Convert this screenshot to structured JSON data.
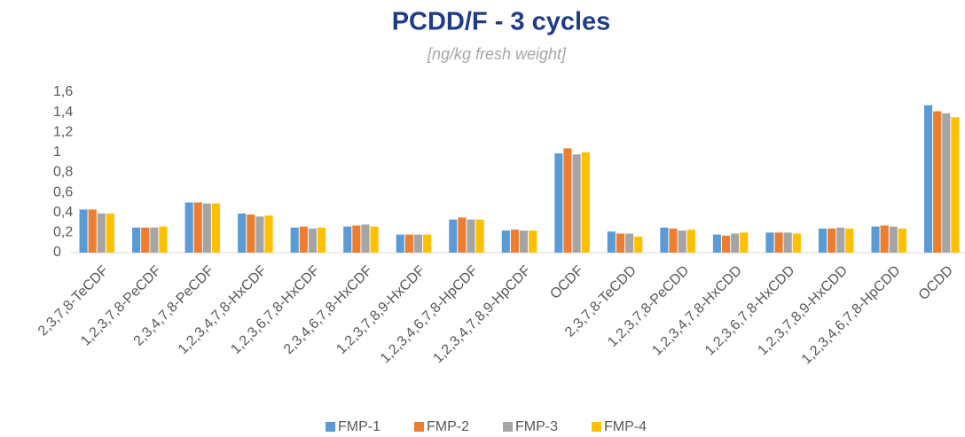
{
  "chart_data": {
    "type": "bar",
    "title": "PCDD/F - 3 cycles",
    "subtitle": "[ng/kg fresh weight]",
    "categories": [
      "2,3,7,8-TeCDF",
      "1,2,3,7,8-PeCDF",
      "2,3,4,7,8-PeCDF",
      "1,2,3,4,7,8-HxCDF",
      "1,2,3,6,7,8-HxCDF",
      "2,3,4,6,7,8-HxCDF",
      "1,2,3,7,8,9-HxCDF",
      "1,2,3,4,6,7,8-HpCDF",
      "1,2,3,4,7,8,9-HpCDF",
      "OCDF",
      "2,3,7,8-TeCDD",
      "1,2,3,7,8-PeCDD",
      "1,2,3,4,7,8-HxCDD",
      "1,2,3,6,7,8-HxCDD",
      "1,2,3,7,8,9-HxCDD",
      "1,2,3,4,6,7,8-HpCDD",
      "OCDD"
    ],
    "series": [
      {
        "name": "FMP-1",
        "color": "#5b9bd5",
        "values": [
          0.43,
          0.25,
          0.5,
          0.39,
          0.25,
          0.26,
          0.18,
          0.33,
          0.22,
          0.99,
          0.21,
          0.25,
          0.18,
          0.2,
          0.24,
          0.26,
          1.47
        ]
      },
      {
        "name": "FMP-2",
        "color": "#ed7d31",
        "values": [
          0.43,
          0.25,
          0.5,
          0.38,
          0.26,
          0.27,
          0.18,
          0.35,
          0.23,
          1.04,
          0.19,
          0.24,
          0.17,
          0.2,
          0.24,
          0.27,
          1.41
        ]
      },
      {
        "name": "FMP-3",
        "color": "#a5a5a5",
        "values": [
          0.39,
          0.25,
          0.49,
          0.36,
          0.24,
          0.28,
          0.18,
          0.33,
          0.22,
          0.98,
          0.19,
          0.22,
          0.19,
          0.2,
          0.25,
          0.26,
          1.39
        ]
      },
      {
        "name": "FMP-4",
        "color": "#ffc000",
        "values": [
          0.39,
          0.26,
          0.49,
          0.37,
          0.25,
          0.26,
          0.18,
          0.33,
          0.22,
          1.0,
          0.16,
          0.23,
          0.2,
          0.19,
          0.24,
          0.24,
          1.35
        ]
      }
    ],
    "ylim": [
      0,
      1.6
    ],
    "yticks": [
      0,
      {
        "value": 0.2,
        "label": "0,2"
      },
      {
        "value": 0.4,
        "label": "0,4"
      },
      {
        "value": 0.6,
        "label": "0,6"
      },
      {
        "value": 0.8,
        "label": "0,8"
      },
      1,
      {
        "value": 1.2,
        "label": "1,2"
      },
      {
        "value": 1.4,
        "label": "1,4"
      },
      {
        "value": 1.6,
        "label": "1,6"
      }
    ],
    "legend": "bottom"
  }
}
